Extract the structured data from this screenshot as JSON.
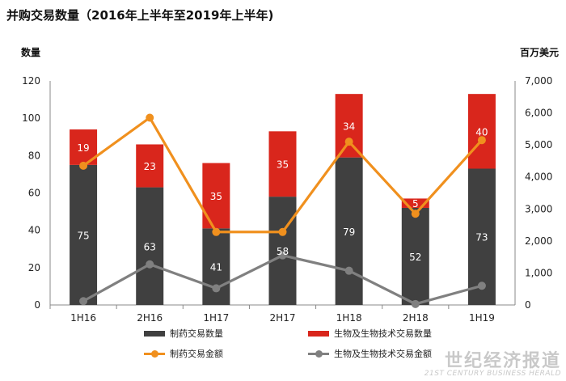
{
  "title": "并购交易数量（2016年上半年至2019年上半年)",
  "y_left_unit": "数量",
  "y_right_unit": "百万美元",
  "watermark": {
    "cn": "世纪经济报道",
    "en": "21ST CENTURY BUSINESS HERALD"
  },
  "legend": [
    {
      "label": "制药交易数量",
      "kind": "bar",
      "color": "#404040"
    },
    {
      "label": "生物及生物技术交易数量",
      "kind": "bar",
      "color": "#d9261c"
    },
    {
      "label": "制药交易金额",
      "kind": "line",
      "color": "#f0901e"
    },
    {
      "label": "生物及生物技术交易金额",
      "kind": "line",
      "color": "#808080"
    }
  ],
  "chart_data": {
    "type": "bar",
    "categories": [
      "1H16",
      "2H16",
      "1H17",
      "2H17",
      "1H18",
      "2H18",
      "1H19"
    ],
    "series": [
      {
        "name": "制药交易数量",
        "type": "stacked-bar",
        "axis": "left",
        "color": "#404040",
        "values": [
          75,
          63,
          41,
          58,
          79,
          52,
          73
        ]
      },
      {
        "name": "生物及生物技术交易数量",
        "type": "stacked-bar",
        "axis": "left",
        "color": "#d9261c",
        "values": [
          19,
          23,
          35,
          35,
          34,
          5,
          40
        ]
      },
      {
        "name": "制药交易金额",
        "type": "line",
        "axis": "right",
        "color": "#f0901e",
        "values": [
          4350,
          5850,
          2280,
          2280,
          5100,
          2850,
          5150
        ]
      },
      {
        "name": "生物及生物技术交易金额",
        "type": "line",
        "axis": "right",
        "color": "#808080",
        "values": [
          120,
          1270,
          520,
          1550,
          1070,
          30,
          600
        ]
      }
    ],
    "y_left": {
      "min": 0,
      "max": 120,
      "ticks": [
        0,
        20,
        40,
        60,
        80,
        100,
        120
      ]
    },
    "y_right": {
      "min": 0,
      "max": 7000,
      "ticks": [
        "0",
        "1,000",
        "2,000",
        "3,000",
        "4,000",
        "5,000",
        "6,000",
        "7,000"
      ]
    },
    "grid": false,
    "legend_position": "bottom"
  }
}
